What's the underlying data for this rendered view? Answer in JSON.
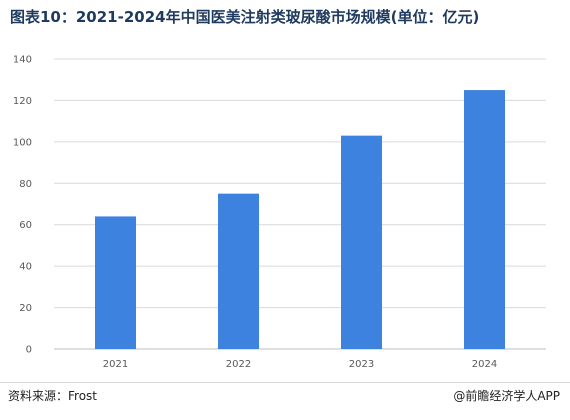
{
  "chart_data": {
    "type": "bar",
    "title": "图表10：2021-2024年中国医美注射类玻尿酸市场规模(单位：亿元)",
    "categories": [
      "2021",
      "2022",
      "2023",
      "2024"
    ],
    "values": [
      64,
      75,
      103,
      125
    ],
    "ylim": [
      0,
      140
    ],
    "yticks": [
      0,
      20,
      40,
      60,
      80,
      100,
      120,
      140
    ],
    "xlabel": "",
    "ylabel": "",
    "grid": true,
    "bar_color": "#3e82e0",
    "grid_color": "#d9d9d9",
    "axis_color": "#bfbfbf"
  },
  "footer": {
    "source": "资料来源：Frost",
    "credit": "@前瞻经济学人APP"
  }
}
